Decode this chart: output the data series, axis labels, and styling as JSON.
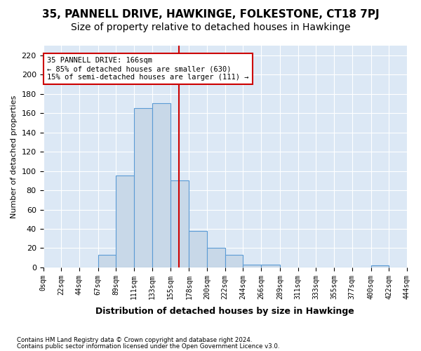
{
  "title": "35, PANNELL DRIVE, HAWKINGE, FOLKESTONE, CT18 7PJ",
  "subtitle": "Size of property relative to detached houses in Hawkinge",
  "xlabel": "Distribution of detached houses by size in Hawkinge",
  "ylabel": "Number of detached properties",
  "bin_labels": [
    "0sqm",
    "22sqm",
    "44sqm",
    "67sqm",
    "89sqm",
    "111sqm",
    "133sqm",
    "155sqm",
    "178sqm",
    "200sqm",
    "222sqm",
    "244sqm",
    "266sqm",
    "289sqm",
    "311sqm",
    "333sqm",
    "355sqm",
    "377sqm",
    "400sqm",
    "422sqm",
    "444sqm"
  ],
  "bin_edges": [
    0,
    22,
    44,
    67,
    89,
    111,
    133,
    155,
    178,
    200,
    222,
    244,
    266,
    289,
    311,
    333,
    355,
    377,
    400,
    422,
    444
  ],
  "bar_heights": [
    0,
    0,
    0,
    13,
    95,
    165,
    170,
    90,
    38,
    20,
    13,
    3,
    3,
    0,
    0,
    0,
    0,
    0,
    2,
    0
  ],
  "bar_color": "#c8d8e8",
  "bar_edgecolor": "#5b9bd5",
  "property_line_x": 166,
  "property_line_color": "#cc0000",
  "ylim": [
    0,
    230
  ],
  "yticks": [
    0,
    20,
    40,
    60,
    80,
    100,
    120,
    140,
    160,
    180,
    200,
    220
  ],
  "annotation_box_text": "35 PANNELL DRIVE: 166sqm\n← 85% of detached houses are smaller (630)\n15% of semi-detached houses are larger (111) →",
  "footer1": "Contains HM Land Registry data © Crown copyright and database right 2024.",
  "footer2": "Contains public sector information licensed under the Open Government Licence v3.0.",
  "background_color": "#dce8f5",
  "title_fontsize": 11,
  "subtitle_fontsize": 10
}
